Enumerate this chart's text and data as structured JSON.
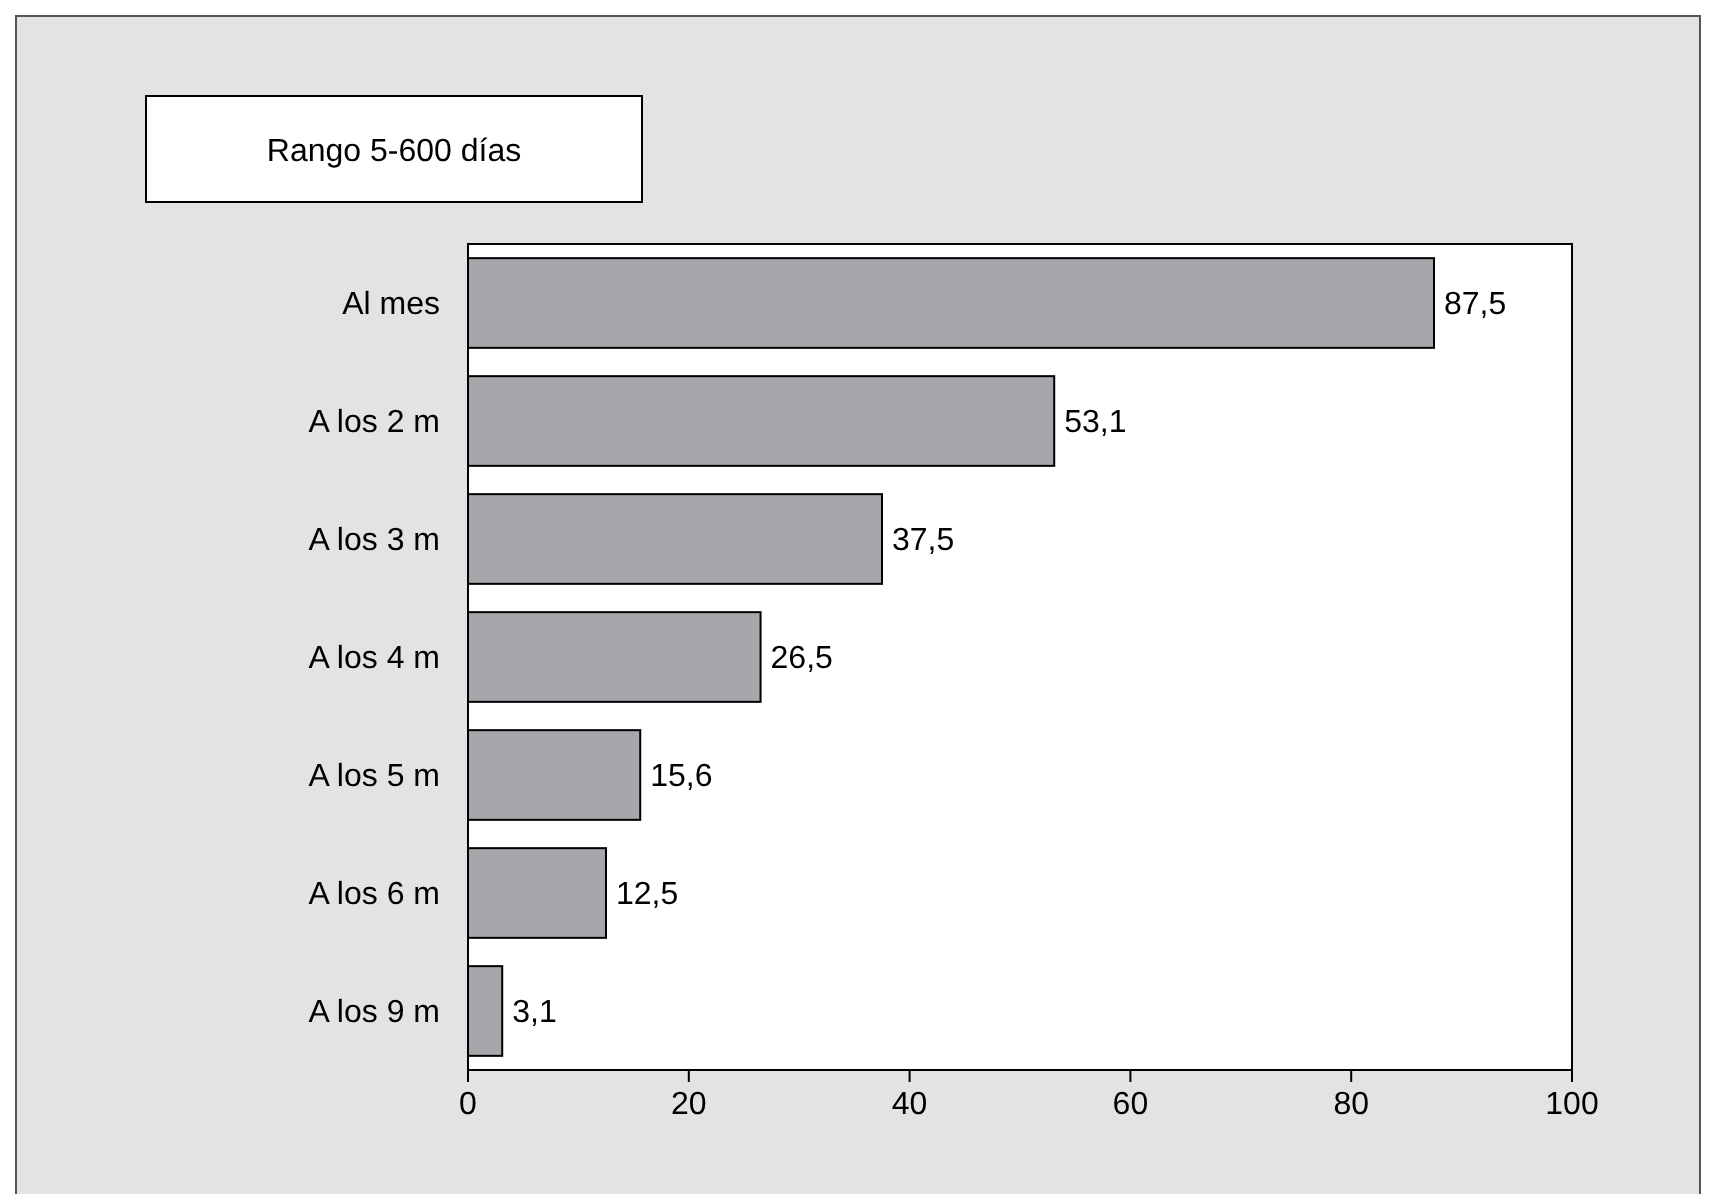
{
  "chart_data": {
    "type": "bar",
    "orientation": "horizontal",
    "title": "Rango 5-600 días",
    "categories": [
      "Al mes",
      "A los 2 m",
      "A los 3 m",
      "A los 4 m",
      "A los 5 m",
      "A los 6 m",
      "A los 9 m"
    ],
    "values": [
      87.5,
      53.1,
      37.5,
      26.5,
      15.6,
      12.5,
      3.1
    ],
    "color": "#a7a7ab",
    "xlim": [
      0,
      100
    ],
    "xticks": [
      0,
      20,
      40,
      60,
      80,
      100
    ],
    "value_labels": [
      "87,5",
      "53,1",
      "37,5",
      "26,5",
      "15,6",
      "12,5",
      "3,1"
    ],
    "grid": false
  }
}
